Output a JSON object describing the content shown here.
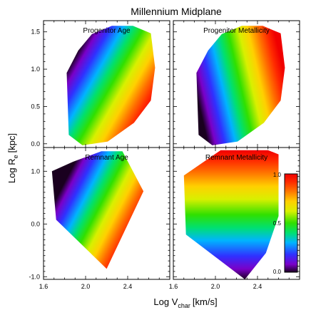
{
  "title": "Millennium Midplane",
  "xlabel_main": "Log V",
  "xlabel_sub": "char",
  "xlabel_unit": "[km/s]",
  "ylabel_main": "Log R",
  "ylabel_sub": "e",
  "ylabel_unit": "[kpc]",
  "colorbar": {
    "ticks": [
      "1.0",
      "0.5",
      "0.0"
    ],
    "range": [
      0,
      1
    ]
  },
  "chart_data": [
    {
      "type": "heatmap",
      "title": "Progenitor Age",
      "x_axis": {
        "range": [
          1.6,
          2.8
        ],
        "ticks": [
          "1.6",
          "2.0",
          "2.4"
        ]
      },
      "y_axis": {
        "range": [
          -0.05,
          1.65
        ],
        "ticks": [
          "0.0",
          "0.5",
          "1.0",
          "1.5"
        ]
      },
      "color_gradient": {
        "direction": [
          0.75,
          -0.58
        ],
        "low_value_corner": "top-left",
        "high_value_corner": "bottom-right"
      },
      "outline": [
        [
          1.82,
          0.95
        ],
        [
          1.93,
          1.25
        ],
        [
          2.06,
          1.47
        ],
        [
          2.25,
          1.58
        ],
        [
          2.45,
          1.58
        ],
        [
          2.62,
          1.48
        ],
        [
          2.66,
          1.02
        ],
        [
          2.62,
          0.58
        ],
        [
          2.46,
          0.28
        ],
        [
          2.21,
          0.03
        ],
        [
          1.97,
          -0.02
        ],
        [
          1.84,
          0.12
        ],
        [
          1.82,
          0.95
        ]
      ]
    },
    {
      "type": "heatmap",
      "title": "Progenitor Metallicity",
      "x_axis": {
        "range": [
          1.6,
          2.8
        ],
        "ticks": [
          "1.6",
          "2.0",
          "2.4"
        ]
      },
      "y_axis": {
        "range": [
          -0.05,
          1.65
        ],
        "ticks": [
          "0.0",
          "0.5",
          "1.0",
          "1.5"
        ]
      },
      "color_gradient": {
        "direction": [
          0.95,
          0.3
        ],
        "low_value_corner": "left",
        "high_value_corner": "right"
      },
      "outline": [
        [
          1.82,
          0.95
        ],
        [
          1.93,
          1.25
        ],
        [
          2.06,
          1.47
        ],
        [
          2.25,
          1.58
        ],
        [
          2.45,
          1.58
        ],
        [
          2.62,
          1.48
        ],
        [
          2.66,
          1.02
        ],
        [
          2.62,
          0.58
        ],
        [
          2.46,
          0.28
        ],
        [
          2.21,
          0.03
        ],
        [
          1.97,
          -0.02
        ],
        [
          1.84,
          0.12
        ],
        [
          1.82,
          0.95
        ]
      ]
    },
    {
      "type": "heatmap",
      "title": "Remnant Age",
      "x_axis": {
        "range": [
          1.6,
          2.8
        ],
        "ticks": [
          "1.6",
          "2.0",
          "2.4"
        ]
      },
      "y_axis": {
        "range": [
          -1.05,
          1.45
        ],
        "ticks": [
          "-1.0",
          "0.0",
          "1.0"
        ]
      },
      "color_gradient": {
        "direction": [
          0.72,
          -0.48
        ],
        "low_value_corner": "top-left",
        "high_value_corner": "bottom-right"
      },
      "outline": [
        [
          1.68,
          1.0
        ],
        [
          1.88,
          1.18
        ],
        [
          2.15,
          1.38
        ],
        [
          2.35,
          1.38
        ],
        [
          2.55,
          0.62
        ],
        [
          2.2,
          -0.85
        ],
        [
          1.72,
          0.08
        ],
        [
          1.68,
          1.0
        ]
      ]
    },
    {
      "type": "heatmap",
      "title": "Remnant Metallicity",
      "x_axis": {
        "range": [
          1.6,
          2.8
        ],
        "ticks": [
          "1.6",
          "2.0",
          "2.4"
        ]
      },
      "y_axis": {
        "range": [
          -1.05,
          1.45
        ],
        "ticks": [
          "-1.0",
          "0.0",
          "1.0"
        ]
      },
      "color_gradient": {
        "direction": [
          0.0,
          1.0
        ],
        "low_value_corner": "bottom",
        "high_value_corner": "top"
      },
      "outline": [
        [
          1.7,
          0.92
        ],
        [
          2.05,
          1.4
        ],
        [
          2.5,
          1.4
        ],
        [
          2.6,
          1.32
        ],
        [
          2.6,
          0.15
        ],
        [
          2.48,
          -0.55
        ],
        [
          2.28,
          -1.05
        ],
        [
          1.72,
          -0.2
        ],
        [
          1.7,
          0.92
        ]
      ]
    }
  ]
}
